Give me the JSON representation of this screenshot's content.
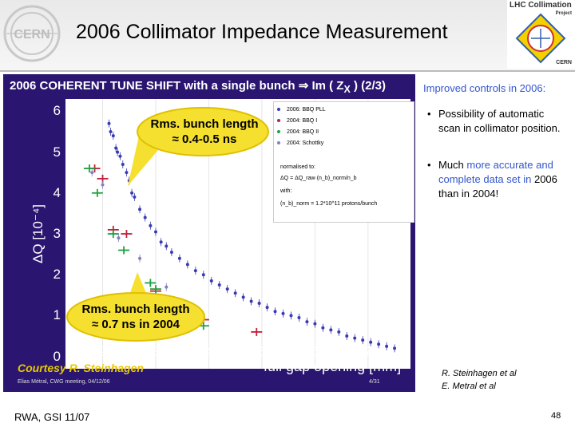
{
  "slide": {
    "title": "2006 Collimator Impedance Measurement",
    "cern_logo_text": "CERN",
    "lhc_logo": {
      "title": "LHC Collimation",
      "subtitle": "Project",
      "org": "CERN"
    }
  },
  "panel": {
    "title": "2006 COHERENT TUNE SHIFT with a single bunch ⇒ Im ( Z",
    "title_sub": "X",
    "title_tail": " )    (2/3)",
    "courtesy": "Courtesy R. Steinhagen",
    "footer_left": "Elias Métral, CWG meeting, 04/12/06",
    "footer_right": "4/31",
    "callout_top": [
      "Rms. bunch length",
      "≈ 0.4-0.5 ns"
    ],
    "callout_bottom": [
      "Rms. bunch length",
      "≈ 0.7 ns in 2004"
    ],
    "legend_note": [
      "normalised to:",
      "ΔQ = ΔQ_raw·(n_b)_norm/n_b",
      "with:",
      "(n_b)_norm = 1.2*10^11 protons/bunch"
    ]
  },
  "chart_data": {
    "type": "scatter",
    "title": "",
    "xlabel": "full gap opening [mm]",
    "ylabel": "ΔQ [10⁻⁴]",
    "xlim": [
      1.3,
      7.8
    ],
    "ylim": [
      -0.3,
      6.3
    ],
    "xticks": [
      "2",
      "3",
      "4",
      "5",
      "6",
      "7"
    ],
    "xtick_values": [
      2,
      3,
      4,
      5,
      6,
      7
    ],
    "yticks": [
      "0",
      "1",
      "2",
      "3",
      "4",
      "5",
      "6"
    ],
    "ytick_values": [
      0,
      1,
      2,
      3,
      4,
      5,
      6
    ],
    "legend_placement": "top-right",
    "series": [
      {
        "name": "2006: BBQ PLL",
        "color": "#3a3ab4",
        "marker": "dot",
        "x": [
          2.12,
          2.15,
          2.2,
          2.25,
          2.28,
          2.33,
          2.38,
          2.45,
          2.5,
          2.55,
          2.6,
          2.7,
          2.8,
          2.9,
          3.0,
          3.1,
          3.2,
          3.3,
          3.45,
          3.6,
          3.75,
          3.9,
          4.05,
          4.2,
          4.35,
          4.5,
          4.65,
          4.8,
          4.95,
          5.1,
          5.25,
          5.4,
          5.55,
          5.7,
          5.85,
          6.0,
          6.15,
          6.3,
          6.45,
          6.6,
          6.75,
          6.9,
          7.05,
          7.2,
          7.35,
          7.5
        ],
        "y": [
          5.7,
          5.5,
          5.4,
          5.1,
          5.0,
          4.9,
          4.7,
          4.5,
          4.3,
          4.0,
          3.9,
          3.6,
          3.4,
          3.2,
          3.05,
          2.8,
          2.7,
          2.55,
          2.4,
          2.25,
          2.1,
          2.0,
          1.85,
          1.75,
          1.65,
          1.55,
          1.45,
          1.35,
          1.3,
          1.2,
          1.1,
          1.05,
          1.0,
          0.95,
          0.85,
          0.8,
          0.7,
          0.65,
          0.6,
          0.5,
          0.45,
          0.4,
          0.35,
          0.3,
          0.25,
          0.2
        ]
      },
      {
        "name": "2004: BBQ I",
        "color": "#c0203a",
        "marker": "cross",
        "x": [
          1.85,
          2.0,
          2.2,
          2.45,
          3.0,
          3.9,
          4.9
        ],
        "y": [
          4.6,
          4.35,
          3.1,
          3.0,
          1.6,
          0.9,
          0.6
        ]
      },
      {
        "name": "2004: BBQ II",
        "color": "#20a040",
        "marker": "cross",
        "x": [
          1.75,
          1.9,
          2.2,
          2.4,
          2.9,
          3.0,
          3.9
        ],
        "y": [
          4.6,
          4.0,
          3.0,
          2.6,
          1.8,
          1.65,
          0.75
        ]
      },
      {
        "name": "2004: Schottky",
        "color": "#8080c0",
        "marker": "dot",
        "x": [
          1.8,
          2.0,
          2.3,
          2.7,
          3.2
        ],
        "y": [
          4.5,
          4.2,
          2.9,
          2.4,
          1.7
        ]
      }
    ]
  },
  "notes": {
    "heading": "Improved controls in 2006:",
    "bullet1": "Possibility of automatic scan in collimator position.",
    "bullet2_a": "Much ",
    "bullet2_b": "more accurate and complete data set in",
    "bullet2_c": " 2006 than in 2004!",
    "refs": [
      "R. Steinhagen  et al",
      "E. Metral et al"
    ]
  },
  "footer": {
    "left": "RWA, GSI 11/07",
    "page": "48"
  }
}
